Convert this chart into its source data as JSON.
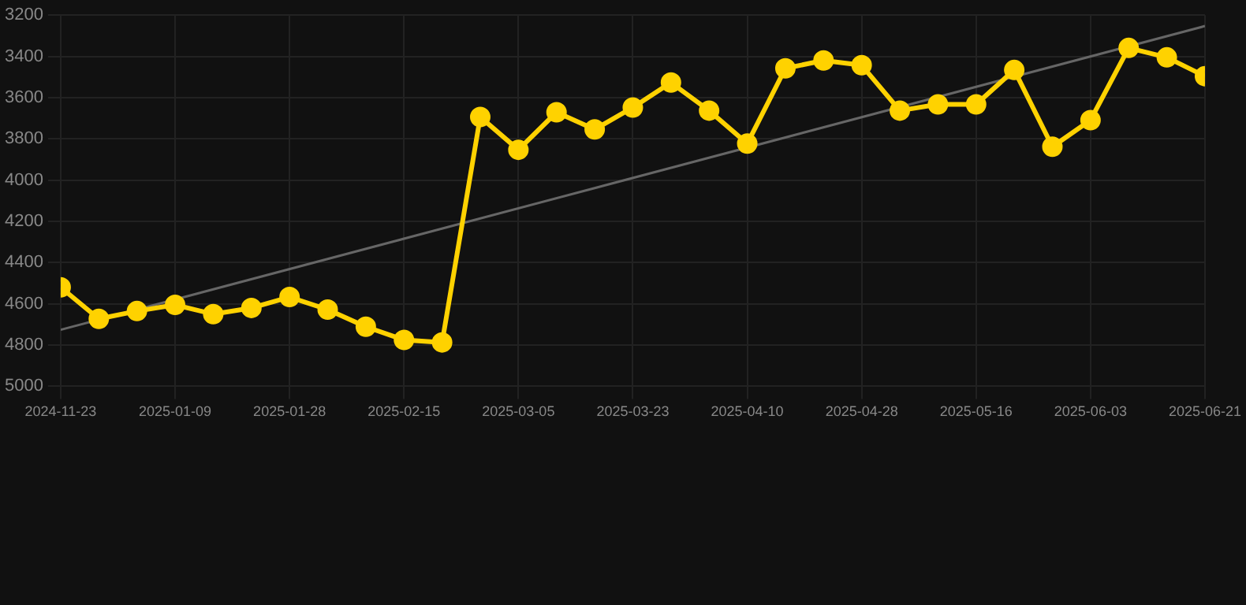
{
  "chart_data": {
    "type": "line",
    "categories": [
      "2024-11-23",
      null,
      null,
      "2025-01-09",
      null,
      null,
      "2025-01-28",
      null,
      null,
      "2025-02-15",
      null,
      null,
      "2025-03-05",
      null,
      null,
      "2025-03-23",
      null,
      null,
      "2025-04-10",
      null,
      null,
      "2025-04-28",
      null,
      null,
      "2025-05-16",
      null,
      null,
      "2025-06-03",
      null,
      null,
      "2025-06-21"
    ],
    "series": [
      {
        "color": "#ffd200",
        "marker": "circle",
        "values": [
          4520,
          4673,
          4635,
          4605,
          4650,
          4620,
          4567,
          4628,
          4711,
          4775,
          4787,
          3694,
          3853,
          3671,
          3754,
          3648,
          3527,
          3663,
          3823,
          3458,
          3420,
          3443,
          3663,
          3633,
          3633,
          3466,
          3838,
          3709,
          3359,
          3405,
          3496
        ]
      },
      {
        "type": "line",
        "color": "#666666",
        "marker": "none",
        "values": [
          4726,
          null,
          null,
          null,
          null,
          null,
          null,
          null,
          null,
          null,
          null,
          null,
          null,
          null,
          null,
          null,
          null,
          null,
          null,
          null,
          null,
          null,
          null,
          null,
          null,
          null,
          null,
          null,
          null,
          null,
          3253
        ]
      }
    ],
    "ylim": [
      5000,
      3200
    ],
    "yticks": [
      3200,
      3400,
      3600,
      3800,
      4000,
      4200,
      4400,
      4600,
      4800,
      5000
    ],
    "grid": true,
    "legend": false
  }
}
